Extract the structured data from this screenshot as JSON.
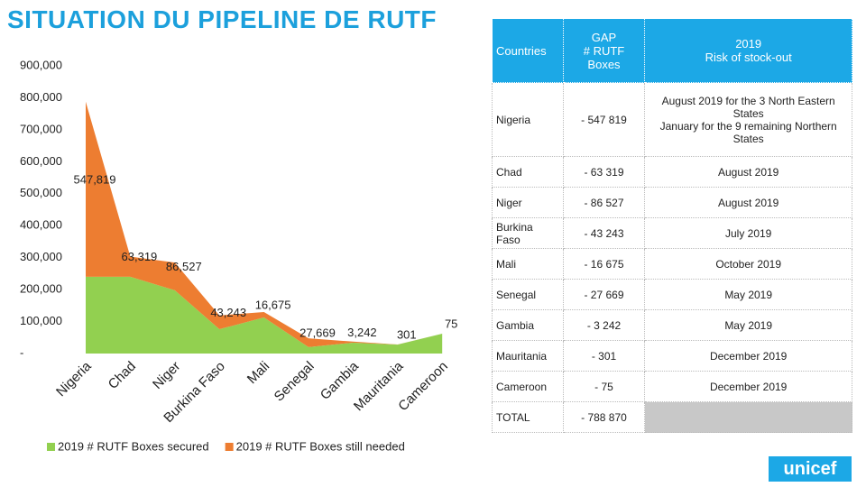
{
  "title": "SITUATION DU PIPELINE DE RUTF",
  "chart_data": {
    "type": "area",
    "categories": [
      "Nigeria",
      "Chad",
      "Niger",
      "Burkina Faso",
      "Mali",
      "Senegal",
      "Gambia",
      "Mauritania",
      "Cameroon"
    ],
    "stacked": true,
    "series": [
      {
        "name": "2019 # RUTF Boxes secured",
        "color": "#92d050",
        "values": [
          240000,
          240000,
          198000,
          76000,
          113000,
          20000,
          34000,
          28000,
          62000
        ]
      },
      {
        "name": "2019 # RUTF Boxes still needed",
        "color": "#ed7d31",
        "values": [
          547819,
          63319,
          86527,
          43243,
          16675,
          27669,
          3242,
          301,
          75
        ],
        "value_labels": [
          "547,819",
          "63,319",
          "86,527",
          "43,243",
          "16,675",
          "27,669",
          "3,242",
          "301",
          "75"
        ]
      }
    ],
    "ylim": [
      0,
      900000
    ],
    "yticks": [
      {
        "value": 0,
        "label": "-"
      },
      {
        "value": 100000,
        "label": "100,000"
      },
      {
        "value": 200000,
        "label": "200,000"
      },
      {
        "value": 300000,
        "label": "300,000"
      },
      {
        "value": 400000,
        "label": "400,000"
      },
      {
        "value": 500000,
        "label": "500,000"
      },
      {
        "value": 600000,
        "label": "600,000"
      },
      {
        "value": 700000,
        "label": "700,000"
      },
      {
        "value": 800000,
        "label": "800,000"
      },
      {
        "value": 900000,
        "label": "900,000"
      }
    ],
    "legend": "bottom"
  },
  "table": {
    "header": [
      "Countries",
      "GAP\n# RUTF Boxes",
      "2019\nRisk of stock-out"
    ],
    "rows": [
      [
        "Nigeria",
        "- 547 819",
        "August 2019 for the 3 North Eastern States\nJanuary for the 9 remaining Northern States"
      ],
      [
        "Chad",
        "- 63 319",
        "August 2019"
      ],
      [
        "Niger",
        "- 86 527",
        "August 2019"
      ],
      [
        "Burkina Faso",
        "- 43 243",
        "July 2019"
      ],
      [
        "Mali",
        "- 16 675",
        "October 2019"
      ],
      [
        "Senegal",
        "- 27 669",
        "May 2019"
      ],
      [
        "Gambia",
        "- 3 242",
        "May 2019"
      ],
      [
        "Mauritania",
        "- 301",
        "December 2019"
      ],
      [
        "Cameroon",
        "- 75",
        "December 2019"
      ]
    ],
    "total": [
      "TOTAL",
      "- 788 870"
    ]
  },
  "logo": "unicef"
}
